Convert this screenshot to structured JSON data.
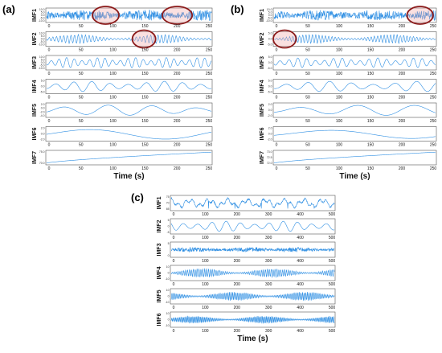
{
  "colors": {
    "signal": "#2f8fe3",
    "highlight": "#8b1a1a",
    "highlight_fill": "#f2a7a7",
    "frame": "#555555"
  },
  "chart_data": [
    {
      "panel": "(a)",
      "type": "line",
      "xlabel": "Time (s)",
      "xticks": [
        "0",
        "50",
        "100",
        "150",
        "200",
        "250"
      ],
      "xlim": [
        0,
        250
      ],
      "series": [
        {
          "name": "IMF1",
          "yticks": [
            "10.0",
            "5.0",
            "0.0",
            "-5.0",
            "-10.0"
          ],
          "kind": "noise",
          "freq": 2.2,
          "amp": 0.85,
          "highlights": [
            [
              70,
              110
            ],
            [
              175,
              220
            ]
          ]
        },
        {
          "name": "IMF2",
          "yticks": [
            "10.0",
            "5.0",
            "0.0",
            "-5.0",
            "-10.0"
          ],
          "kind": "burst",
          "freq": 0.55,
          "amp": 0.75,
          "highlights": [
            [
              130,
              165
            ]
          ]
        },
        {
          "name": "IMF3",
          "yticks": [
            "10.0",
            "5.0",
            "0.0",
            "-5.0",
            "-10.0"
          ],
          "kind": "wave",
          "freq": 0.26,
          "amp": 0.8,
          "highlights": []
        },
        {
          "name": "IMF4",
          "yticks": [
            "5.0",
            "0.0",
            "-5.0"
          ],
          "kind": "wave",
          "freq": 0.11,
          "amp": 0.8,
          "highlights": []
        },
        {
          "name": "IMF5",
          "yticks": [
            "2.0",
            "0.0",
            "-2.0",
            "-4.0"
          ],
          "kind": "wave",
          "freq": 0.045,
          "amp": 0.8,
          "highlights": []
        },
        {
          "name": "IMF6",
          "yticks": [
            "2.0",
            "0.0",
            "-2.0"
          ],
          "kind": "wave",
          "freq": 0.013,
          "amp": 0.85,
          "highlights": []
        },
        {
          "name": "IMF7",
          "yticks": [
            "75.0",
            "70.0"
          ],
          "kind": "trend",
          "freq": 0,
          "amp": 0.85,
          "highlights": []
        }
      ]
    },
    {
      "panel": "(b)",
      "type": "line",
      "xlabel": "Time (s)",
      "xticks": [
        "0",
        "50",
        "100",
        "150",
        "200",
        "250"
      ],
      "xlim": [
        0,
        250
      ],
      "series": [
        {
          "name": "IMF1",
          "yticks": [
            "10.0",
            "5.0",
            "0.0",
            "-5.0",
            "-10.0"
          ],
          "kind": "noise",
          "freq": 2.0,
          "amp": 0.8,
          "highlights": [
            [
              205,
              245
            ]
          ]
        },
        {
          "name": "IMF2",
          "yticks": [
            "5.0",
            "0.0",
            "-5.0"
          ],
          "kind": "burst",
          "freq": 0.6,
          "amp": 0.75,
          "highlights": [
            [
              0,
              35
            ]
          ]
        },
        {
          "name": "IMF3",
          "yticks": [
            "5.0",
            "0.0",
            "-5.0"
          ],
          "kind": "wave",
          "freq": 0.22,
          "amp": 0.75,
          "highlights": []
        },
        {
          "name": "IMF4",
          "yticks": [
            "5.0",
            "0.0",
            "-5.0"
          ],
          "kind": "wave",
          "freq": 0.09,
          "amp": 0.8,
          "highlights": []
        },
        {
          "name": "IMF5",
          "yticks": [
            "2.0",
            "0.0",
            "-2.0"
          ],
          "kind": "wave",
          "freq": 0.034,
          "amp": 0.8,
          "highlights": []
        },
        {
          "name": "IMF6",
          "yticks": [
            "2.0",
            "0.0",
            "-2.0"
          ],
          "kind": "wave",
          "freq": 0.012,
          "amp": 0.8,
          "highlights": []
        },
        {
          "name": "IMF7",
          "yticks": [
            "73.0",
            "72.5",
            "72.0"
          ],
          "kind": "trend",
          "freq": 0,
          "amp": 0.85,
          "highlights": []
        }
      ]
    },
    {
      "panel": "(c)",
      "type": "line",
      "xlabel": "Time (s)",
      "xticks": [
        "0",
        "100",
        "200",
        "300",
        "400",
        "500"
      ],
      "xlim": [
        0,
        500
      ],
      "series": [
        {
          "name": "IMF1",
          "yticks": [
            "75",
            "70",
            "65"
          ],
          "kind": "slow",
          "freq": 0.09,
          "amp": 0.8,
          "highlights": []
        },
        {
          "name": "IMF2",
          "yticks": [
            "5",
            "0",
            "-5"
          ],
          "kind": "wave",
          "freq": 0.12,
          "amp": 0.75,
          "highlights": []
        },
        {
          "name": "IMF3",
          "yticks": [
            "5",
            "0"
          ],
          "kind": "noise",
          "freq": 0.35,
          "amp": 0.35,
          "highlights": []
        },
        {
          "name": "IMF4",
          "yticks": [
            "10",
            "0",
            "-10"
          ],
          "kind": "burst",
          "freq": 0.9,
          "amp": 0.7,
          "highlights": []
        },
        {
          "name": "IMF5",
          "yticks": [
            "10",
            "0",
            "-10"
          ],
          "kind": "burst",
          "freq": 1.1,
          "amp": 0.7,
          "highlights": []
        },
        {
          "name": "IMF6",
          "yticks": [
            "10",
            "0",
            "-10"
          ],
          "kind": "burst",
          "freq": 1.3,
          "amp": 0.6,
          "highlights": []
        }
      ]
    }
  ]
}
